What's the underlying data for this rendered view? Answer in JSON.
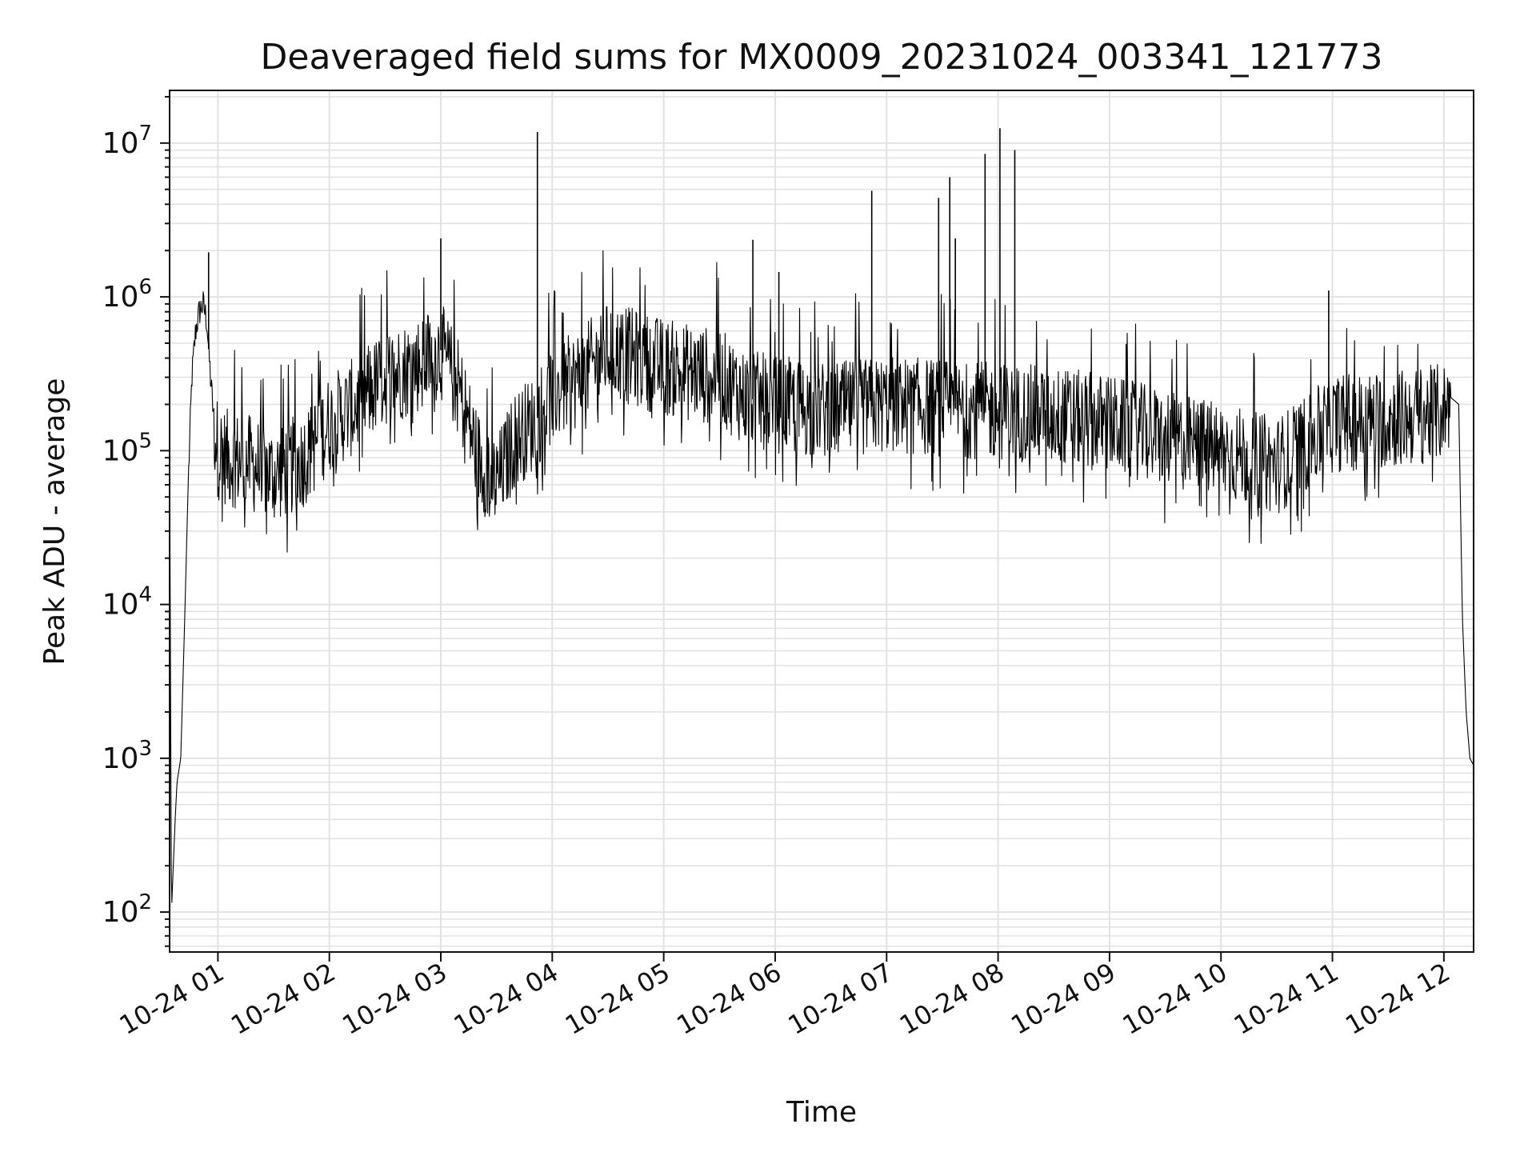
{
  "chart_data": {
    "type": "line",
    "title": "Deaveraged field sums for MX0009_20231024_003341_121773",
    "xlabel": "Time",
    "ylabel": "Peak ADU - average",
    "yscale": "log",
    "ylim": [
      55,
      22000000
    ],
    "xlim": [
      "2023-10-24 00:34",
      "2023-10-24 12:16"
    ],
    "grid": true,
    "line_color": "#000000",
    "x_ticks": [
      {
        "t": "2023-10-24 01:00",
        "label": "10-24 01"
      },
      {
        "t": "2023-10-24 02:00",
        "label": "10-24 02"
      },
      {
        "t": "2023-10-24 03:00",
        "label": "10-24 03"
      },
      {
        "t": "2023-10-24 04:00",
        "label": "10-24 04"
      },
      {
        "t": "2023-10-24 05:00",
        "label": "10-24 05"
      },
      {
        "t": "2023-10-24 06:00",
        "label": "10-24 06"
      },
      {
        "t": "2023-10-24 07:00",
        "label": "10-24 07"
      },
      {
        "t": "2023-10-24 08:00",
        "label": "10-24 08"
      },
      {
        "t": "2023-10-24 09:00",
        "label": "10-24 09"
      },
      {
        "t": "2023-10-24 10:00",
        "label": "10-24 10"
      },
      {
        "t": "2023-10-24 11:00",
        "label": "10-24 11"
      },
      {
        "t": "2023-10-24 12:00",
        "label": "10-24 12"
      }
    ],
    "y_ticks": [
      {
        "value": 100,
        "base": "10",
        "exp": "2"
      },
      {
        "value": 1000,
        "base": "10",
        "exp": "3"
      },
      {
        "value": 10000,
        "base": "10",
        "exp": "4"
      },
      {
        "value": 100000,
        "base": "10",
        "exp": "5"
      },
      {
        "value": 1000000,
        "base": "10",
        "exp": "6"
      },
      {
        "value": 10000000,
        "base": "10",
        "exp": "7"
      }
    ],
    "series": [
      {
        "x": [
          "2023-10-24 00:34",
          "2023-10-24 00:35",
          "2023-10-24 00:36",
          "2023-10-24 00:37",
          "2023-10-24 00:38",
          "2023-10-24 00:40",
          "2023-10-24 00:42",
          "2023-10-24 00:44",
          "2023-10-24 00:46",
          "2023-10-24 00:48",
          "2023-10-24 00:50",
          "2023-10-24 00:52",
          "2023-10-24 00:54",
          "2023-10-24 00:56",
          "2023-10-24 00:58",
          "2023-10-24 01:00",
          "2023-10-24 01:05",
          "2023-10-24 01:15",
          "2023-10-24 01:30",
          "2023-10-24 01:45",
          "2023-10-24 02:00",
          "2023-10-24 02:15",
          "2023-10-24 02:30",
          "2023-10-24 02:45",
          "2023-10-24 03:00",
          "2023-10-24 03:10",
          "2023-10-24 03:20",
          "2023-10-24 03:30",
          "2023-10-24 03:40",
          "2023-10-24 03:50",
          "2023-10-24 04:00",
          "2023-10-24 04:15",
          "2023-10-24 04:30",
          "2023-10-24 04:45",
          "2023-10-24 05:00",
          "2023-10-24 05:15",
          "2023-10-24 05:30",
          "2023-10-24 05:45",
          "2023-10-24 06:00",
          "2023-10-24 06:30",
          "2023-10-24 07:00",
          "2023-10-24 07:30",
          "2023-10-24 08:00",
          "2023-10-24 08:30",
          "2023-10-24 09:00",
          "2023-10-24 09:30",
          "2023-10-24 10:00",
          "2023-10-24 10:30",
          "2023-10-24 11:00",
          "2023-10-24 11:30",
          "2023-10-24 11:50",
          "2023-10-24 12:00",
          "2023-10-24 12:04",
          "2023-10-24 12:08",
          "2023-10-24 12:10",
          "2023-10-24 12:12",
          "2023-10-24 12:14",
          "2023-10-24 12:16"
        ],
        "y": [
          120000,
          100,
          200,
          400,
          700,
          1000,
          7000,
          60000,
          300000,
          600000,
          800000,
          900000,
          700000,
          300000,
          150000,
          100000,
          90000,
          85000,
          70000,
          85000,
          150000,
          200000,
          300000,
          350000,
          450000,
          250000,
          90000,
          60000,
          120000,
          150000,
          230000,
          300000,
          450000,
          400000,
          350000,
          320000,
          300000,
          220000,
          200000,
          180000,
          200000,
          190000,
          180000,
          170000,
          150000,
          120000,
          100000,
          80000,
          150000,
          160000,
          170000,
          180000,
          220000,
          200000,
          8000,
          2000,
          1000,
          900
        ]
      }
    ],
    "spikes": [
      {
        "x": "2023-10-24 00:55",
        "y": 1950000
      },
      {
        "x": "2023-10-24 03:00",
        "y": 2400000
      },
      {
        "x": "2023-10-24 03:52",
        "y": 11800000
      },
      {
        "x": "2023-10-24 05:48",
        "y": 2350000
      },
      {
        "x": "2023-10-24 06:02",
        "y": 1450000
      },
      {
        "x": "2023-10-24 06:52",
        "y": 4900000
      },
      {
        "x": "2023-10-24 07:28",
        "y": 4400000
      },
      {
        "x": "2023-10-24 07:34",
        "y": 6000000
      },
      {
        "x": "2023-10-24 07:37",
        "y": 2400000
      },
      {
        "x": "2023-10-24 07:53",
        "y": 8500000
      },
      {
        "x": "2023-10-24 08:01",
        "y": 12500000
      },
      {
        "x": "2023-10-24 08:09",
        "y": 9000000
      },
      {
        "x": "2023-10-24 10:58",
        "y": 1100000
      }
    ]
  }
}
